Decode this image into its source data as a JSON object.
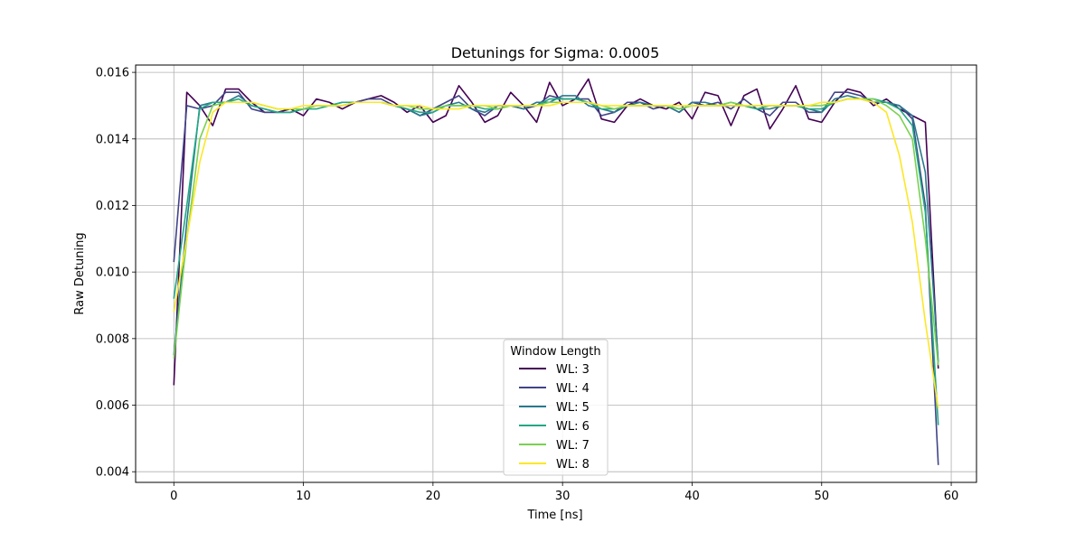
{
  "chart_data": {
    "type": "line",
    "title": "Detunings for Sigma: 0.0005",
    "xlabel": "Time [ns]",
    "ylabel": "Raw Detuning",
    "xlim": [
      -2.95,
      61.95
    ],
    "ylim": [
      0.00368,
      0.01622
    ],
    "xticks": [
      0,
      10,
      20,
      30,
      40,
      50,
      60
    ],
    "xtick_labels": [
      "0",
      "10",
      "20",
      "30",
      "40",
      "50",
      "60"
    ],
    "yticks": [
      0.004,
      0.006,
      0.008,
      0.01,
      0.012,
      0.014,
      0.016
    ],
    "ytick_labels": [
      "0.004",
      "0.006",
      "0.008",
      "0.010",
      "0.012",
      "0.014",
      "0.016"
    ],
    "grid": true,
    "legend": {
      "title": "Window Length",
      "position": "lower-center"
    },
    "x": [
      0,
      1,
      2,
      3,
      4,
      5,
      6,
      7,
      8,
      9,
      10,
      11,
      12,
      13,
      14,
      15,
      16,
      17,
      18,
      19,
      20,
      21,
      22,
      23,
      24,
      25,
      26,
      27,
      28,
      29,
      30,
      31,
      32,
      33,
      34,
      35,
      36,
      37,
      38,
      39,
      40,
      41,
      42,
      43,
      44,
      45,
      46,
      47,
      48,
      49,
      50,
      51,
      52,
      53,
      54,
      55,
      56,
      57,
      58,
      59
    ],
    "series": [
      {
        "name": "WL: 3",
        "color": "#440154",
        "values": [
          0.0066,
          0.0154,
          0.015,
          0.0144,
          0.0155,
          0.0155,
          0.0151,
          0.0148,
          0.0148,
          0.0149,
          0.0147,
          0.0152,
          0.0151,
          0.0149,
          0.0151,
          0.0152,
          0.0153,
          0.0151,
          0.0148,
          0.015,
          0.0145,
          0.0147,
          0.0156,
          0.0151,
          0.0145,
          0.0147,
          0.0154,
          0.015,
          0.0145,
          0.0157,
          0.015,
          0.0152,
          0.0158,
          0.0146,
          0.0145,
          0.015,
          0.0152,
          0.015,
          0.0149,
          0.0151,
          0.0146,
          0.0154,
          0.0153,
          0.0144,
          0.0153,
          0.0155,
          0.0143,
          0.0149,
          0.0156,
          0.0146,
          0.0145,
          0.0151,
          0.0155,
          0.0154,
          0.015,
          0.0152,
          0.0149,
          0.0147,
          0.0145,
          0.0071
        ]
      },
      {
        "name": "WL: 4",
        "color": "#414487",
        "values": [
          0.0103,
          0.015,
          0.0149,
          0.015,
          0.0154,
          0.0154,
          0.0149,
          0.0148,
          0.0148,
          0.0148,
          0.0149,
          0.015,
          0.015,
          0.015,
          0.0151,
          0.0152,
          0.0152,
          0.015,
          0.0149,
          0.0147,
          0.0149,
          0.0151,
          0.0153,
          0.0149,
          0.0147,
          0.015,
          0.015,
          0.0149,
          0.015,
          0.0153,
          0.0152,
          0.0152,
          0.0152,
          0.0147,
          0.0148,
          0.0151,
          0.0151,
          0.0149,
          0.015,
          0.0148,
          0.0151,
          0.015,
          0.0151,
          0.0149,
          0.0152,
          0.0149,
          0.0147,
          0.0151,
          0.0151,
          0.0148,
          0.0148,
          0.0154,
          0.0154,
          0.0153,
          0.0151,
          0.0151,
          0.015,
          0.0146,
          0.012,
          0.0042
        ]
      },
      {
        "name": "WL: 5",
        "color": "#2a788e",
        "values": [
          0.0075,
          0.0115,
          0.015,
          0.0151,
          0.0151,
          0.0153,
          0.015,
          0.0149,
          0.0148,
          0.0148,
          0.0149,
          0.015,
          0.015,
          0.0151,
          0.0151,
          0.0151,
          0.0151,
          0.015,
          0.0149,
          0.0147,
          0.0148,
          0.015,
          0.0151,
          0.0149,
          0.0148,
          0.015,
          0.015,
          0.0149,
          0.0151,
          0.0151,
          0.0153,
          0.0153,
          0.015,
          0.0149,
          0.0148,
          0.015,
          0.0151,
          0.015,
          0.015,
          0.0148,
          0.0151,
          0.0151,
          0.015,
          0.015,
          0.015,
          0.0149,
          0.0149,
          0.015,
          0.015,
          0.0149,
          0.0148,
          0.0152,
          0.0153,
          0.0152,
          0.0151,
          0.0151,
          0.015,
          0.0147,
          0.013,
          0.0073
        ]
      },
      {
        "name": "WL: 6",
        "color": "#22a884",
        "values": [
          0.0092,
          0.012,
          0.0149,
          0.0151,
          0.0151,
          0.0152,
          0.015,
          0.0149,
          0.0148,
          0.0148,
          0.0149,
          0.0149,
          0.015,
          0.0151,
          0.0151,
          0.0151,
          0.0151,
          0.015,
          0.0149,
          0.0148,
          0.0148,
          0.015,
          0.015,
          0.015,
          0.0149,
          0.0149,
          0.015,
          0.015,
          0.015,
          0.0152,
          0.0152,
          0.0152,
          0.0151,
          0.0149,
          0.0149,
          0.015,
          0.015,
          0.015,
          0.015,
          0.0149,
          0.015,
          0.015,
          0.015,
          0.0151,
          0.015,
          0.0149,
          0.015,
          0.015,
          0.015,
          0.0149,
          0.0149,
          0.0151,
          0.0152,
          0.0152,
          0.0152,
          0.0151,
          0.0149,
          0.0144,
          0.0118,
          0.0054
        ]
      },
      {
        "name": "WL: 7",
        "color": "#7ad151",
        "values": [
          0.0074,
          0.011,
          0.014,
          0.015,
          0.0151,
          0.0151,
          0.0151,
          0.015,
          0.0149,
          0.0149,
          0.0149,
          0.015,
          0.015,
          0.015,
          0.0151,
          0.0151,
          0.0151,
          0.015,
          0.015,
          0.0149,
          0.0149,
          0.015,
          0.015,
          0.015,
          0.015,
          0.0149,
          0.015,
          0.015,
          0.015,
          0.0151,
          0.0151,
          0.0151,
          0.0151,
          0.015,
          0.0149,
          0.015,
          0.015,
          0.015,
          0.015,
          0.0149,
          0.015,
          0.015,
          0.015,
          0.0151,
          0.015,
          0.015,
          0.015,
          0.015,
          0.015,
          0.015,
          0.015,
          0.0151,
          0.0152,
          0.0152,
          0.0152,
          0.015,
          0.0147,
          0.014,
          0.011,
          0.0072
        ]
      },
      {
        "name": "WL: 8",
        "color": "#fde725",
        "values": [
          0.0088,
          0.011,
          0.0133,
          0.0148,
          0.0151,
          0.0151,
          0.0151,
          0.015,
          0.0149,
          0.0149,
          0.015,
          0.015,
          0.015,
          0.015,
          0.0151,
          0.0151,
          0.0151,
          0.015,
          0.015,
          0.015,
          0.0149,
          0.0149,
          0.0149,
          0.015,
          0.015,
          0.015,
          0.015,
          0.015,
          0.015,
          0.015,
          0.0151,
          0.0151,
          0.0151,
          0.015,
          0.015,
          0.015,
          0.015,
          0.015,
          0.015,
          0.015,
          0.015,
          0.015,
          0.015,
          0.015,
          0.015,
          0.015,
          0.015,
          0.015,
          0.015,
          0.015,
          0.0151,
          0.0151,
          0.0152,
          0.0152,
          0.0151,
          0.0148,
          0.0135,
          0.0115,
          0.0085,
          0.0059
        ]
      }
    ]
  }
}
